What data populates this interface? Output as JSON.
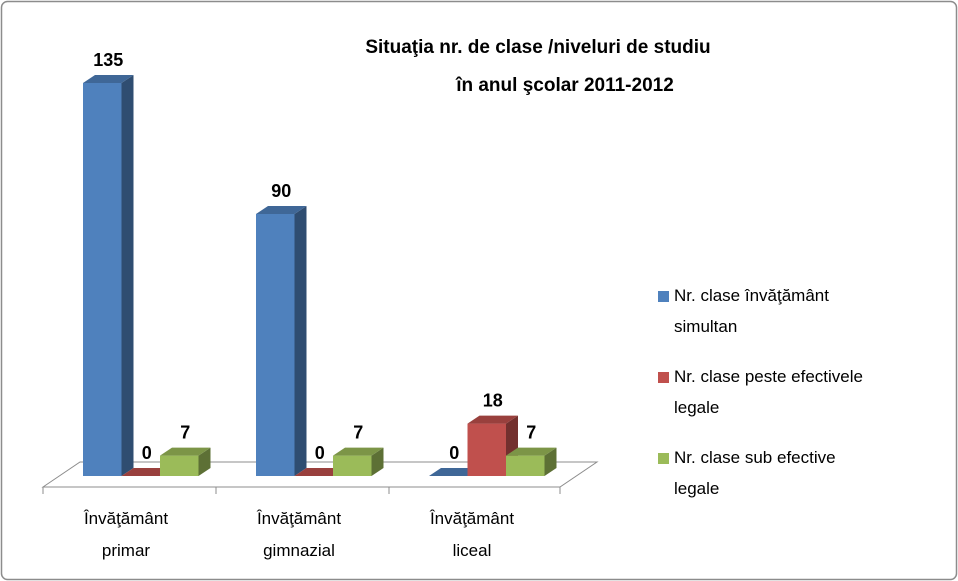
{
  "chart_data": {
    "type": "bar3d",
    "title": [
      "Situaţia nr. de clase /niveluri de studiu",
      "în anul şcolar 2011-2012"
    ],
    "categories": [
      "Învăţământ primar",
      "Învăţământ gimnazial",
      "Învăţământ liceal"
    ],
    "series": [
      {
        "name": "Nr. clase învăţământ simultan",
        "color": "#4f81bd",
        "values": [
          135,
          90,
          0
        ]
      },
      {
        "name": "Nr. clase peste efectivele legale",
        "color": "#c0504d",
        "values": [
          0,
          0,
          18
        ]
      },
      {
        "name": "Nr. clase sub efective legale",
        "color": "#9bbb59",
        "values": [
          7,
          7,
          7
        ]
      }
    ],
    "legend": "right"
  }
}
